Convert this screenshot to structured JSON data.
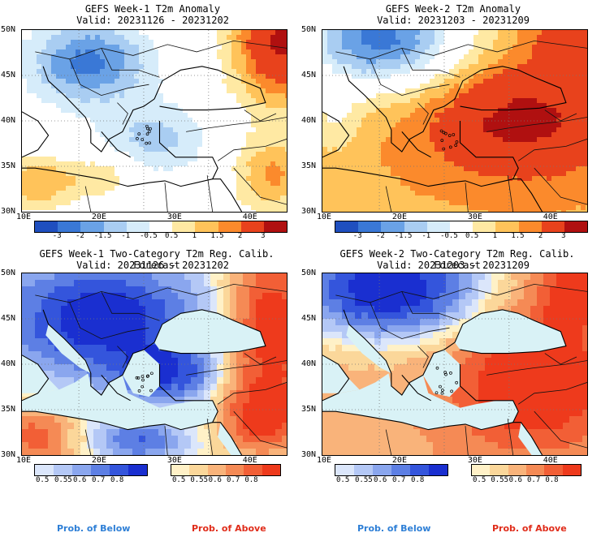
{
  "panels": [
    {
      "title1": "GEFS Week-1 T2m Anomaly",
      "title2": "Valid: 20231126 - 20231202",
      "kind": "anom1"
    },
    {
      "title1": "GEFS Week-2 T2m Anomaly",
      "title2": "Valid: 20231203 - 20231209",
      "kind": "anom2"
    },
    {
      "title1": "GEFS Week-1 Two-Category T2m Reg. Calib. Forecast",
      "title2": "Valid: 20231126 - 20231202",
      "kind": "prob1"
    },
    {
      "title1": "GEFS Week-2 Two-Category T2m Reg. Calib. Forecast",
      "title2": "Valid: 20231203 - 20231209",
      "kind": "prob2"
    }
  ],
  "axes": {
    "lat_labels": [
      "50N",
      "45N",
      "40N",
      "35N",
      "30N"
    ],
    "lon_labels": [
      "10E",
      "20E",
      "30E",
      "40E"
    ]
  },
  "anomaly_colorbar": {
    "labels": [
      "-3",
      "-2",
      "-1.5",
      "-1",
      "-0.5",
      "0.5",
      "1",
      "1.5",
      "2",
      "3"
    ],
    "colors": [
      "#1f4fbf",
      "#3a78d6",
      "#6aa2e6",
      "#a9cdf2",
      "#d6ecfa",
      "#ffffff",
      "#ffe9a3",
      "#ffc35a",
      "#fb8a2c",
      "#e8421c",
      "#b01010"
    ]
  },
  "prob_colorbar": {
    "below_labels": [
      "0.5",
      "0.55",
      "0.6",
      "0.7",
      "0.8"
    ],
    "above_labels": [
      "0.5",
      "0.55",
      "0.6",
      "0.7",
      "0.8"
    ],
    "below_colors": [
      "#dbe6fb",
      "#b4c8f6",
      "#8aa6ee",
      "#5d7fe4",
      "#3455dc",
      "#1a2fd0"
    ],
    "above_colors": [
      "#fff1c7",
      "#fbd79a",
      "#f9b37a",
      "#f58a55",
      "#f25f36",
      "#ee3a1c"
    ],
    "below_caption": "Prob. of Below",
    "above_caption": "Prob. of Above"
  },
  "colors": {
    "sea_prob": "#d9f2f6",
    "below_text": "#2e7fd6",
    "above_text": "#e02c1a"
  }
}
